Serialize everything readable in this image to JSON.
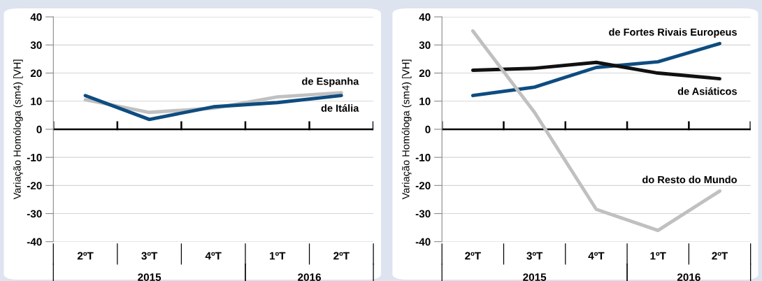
{
  "chart_data": [
    {
      "type": "line",
      "categories": [
        "2ºT",
        "3ºT",
        "4ºT",
        "1ºT",
        "2ºT"
      ],
      "ylabel": "Variação Homóloga (sm4) [VH]",
      "ylim": [
        -40,
        40
      ],
      "yticks": [
        -40,
        -30,
        -20,
        -10,
        0,
        10,
        20,
        30,
        40
      ],
      "grid": "y",
      "legend": false,
      "annotations": [
        "2015",
        "2016"
      ],
      "series": [
        {
          "name": "de Espanha",
          "color": "#c0c0c0",
          "values": [
            10.5,
            6,
            7.5,
            11.5,
            13
          ]
        },
        {
          "name": "de Itália",
          "color": "#0e4c80",
          "values": [
            12,
            3.5,
            8,
            9.5,
            12
          ]
        }
      ]
    },
    {
      "type": "line",
      "categories": [
        "2ºT",
        "3ºT",
        "4ºT",
        "1ºT",
        "2ºT"
      ],
      "ylabel": "Variação Homóloga (sm4) [VH]",
      "ylim": [
        -40,
        40
      ],
      "yticks": [
        -40,
        -30,
        -20,
        -10,
        0,
        10,
        20,
        30,
        40
      ],
      "grid": "y",
      "legend": false,
      "annotations": [
        "2015",
        "2016"
      ],
      "series": [
        {
          "name": "de Fortes Rivais Europeus",
          "color": "#0e4c80",
          "values": [
            12,
            15,
            22,
            24,
            30.5
          ]
        },
        {
          "name": "de Asiáticos",
          "color": "#111111",
          "values": [
            21,
            21.7,
            23.8,
            20,
            18
          ]
        },
        {
          "name": "do Resto do Mundo",
          "color": "#c0c0c0",
          "values": [
            35,
            6,
            -28.5,
            -36,
            -22
          ]
        }
      ]
    }
  ]
}
